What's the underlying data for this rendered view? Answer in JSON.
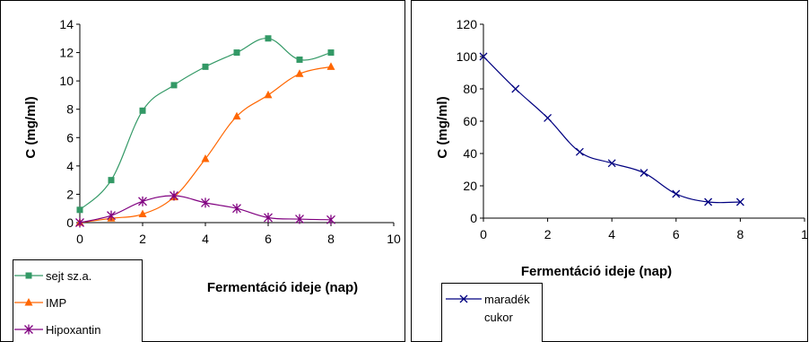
{
  "chart_data": [
    {
      "type": "line",
      "title": "",
      "xlabel": "Fermentáció ideje (nap)",
      "ylabel": "C (mg/ml)",
      "xlim": [
        0,
        10
      ],
      "ylim": [
        0,
        14
      ],
      "xticks": [
        "0",
        "2",
        "4",
        "6",
        "8",
        "10"
      ],
      "yticks": [
        "0",
        "2",
        "4",
        "6",
        "8",
        "10",
        "12",
        "14"
      ],
      "grid": false,
      "legend": "bottom-left",
      "x": [
        0,
        1,
        2,
        3,
        4,
        5,
        6,
        7,
        8
      ],
      "series": [
        {
          "name": "sejt sz.a.",
          "color": "#339966",
          "marker": "square",
          "values": [
            0.9,
            3.0,
            7.9,
            9.7,
            11.0,
            12.0,
            13.0,
            11.5,
            12.0
          ]
        },
        {
          "name": "IMP",
          "color": "#FF6600",
          "marker": "triangle",
          "values": [
            0.0,
            0.3,
            0.6,
            1.8,
            4.5,
            7.5,
            9.0,
            10.5,
            11.0
          ]
        },
        {
          "name": "Hipoxantin",
          "color": "#800080",
          "marker": "asterisk",
          "values": [
            0.0,
            0.5,
            1.5,
            1.9,
            1.4,
            1.0,
            0.35,
            0.25,
            0.2
          ]
        }
      ]
    },
    {
      "type": "line",
      "title": "",
      "xlabel": "Fermentáció ideje (nap)",
      "ylabel": "C (mg/ml)",
      "xlim": [
        0,
        10
      ],
      "ylim": [
        0,
        120
      ],
      "xticks": [
        "0",
        "2",
        "4",
        "6",
        "8",
        "1"
      ],
      "yticks": [
        "0",
        "20",
        "40",
        "60",
        "80",
        "100",
        "120"
      ],
      "grid": false,
      "legend": "bottom-left",
      "x": [
        0,
        1,
        2,
        3,
        4,
        5,
        6,
        7,
        8
      ],
      "series": [
        {
          "name": "maradék cukor",
          "name_lines": [
            "maradék",
            "cukor"
          ],
          "color": "#000080",
          "marker": "x",
          "values": [
            100,
            80,
            62,
            41,
            34,
            28,
            15,
            10,
            10
          ]
        }
      ]
    }
  ]
}
